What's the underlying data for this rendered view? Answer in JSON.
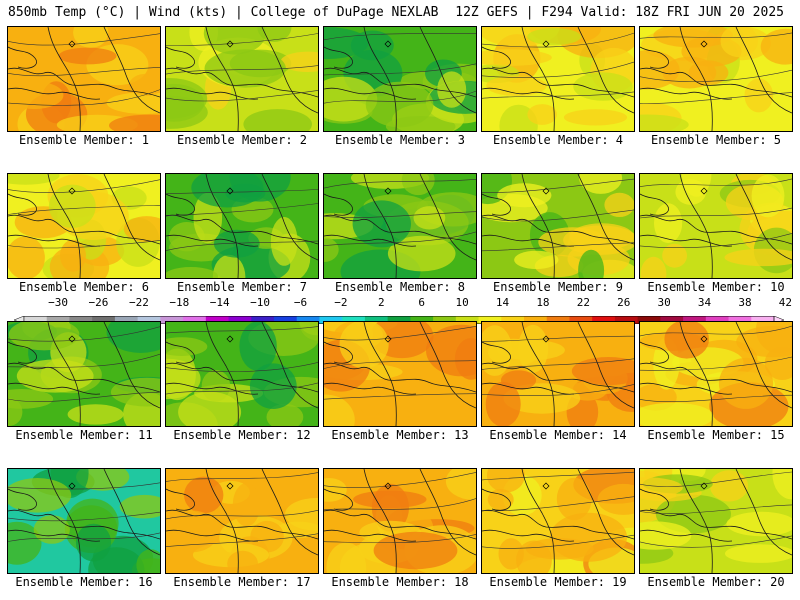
{
  "header": {
    "left": "850mb Temp (°C) | Wind (kts) | College of DuPage NEXLAB",
    "right": "12Z GEFS | F294 Valid: 18Z FRI JUN 20 2025"
  },
  "colorbar": {
    "tick_labels": [
      "-30",
      "-26",
      "-22",
      "-18",
      "-14",
      "-10",
      "-6",
      "-2",
      "2",
      "6",
      "10",
      "14",
      "18",
      "22",
      "26",
      "30",
      "34",
      "38",
      "42"
    ],
    "colors": [
      "#d8d8d8",
      "#a8a8a8",
      "#888888",
      "#707070",
      "#9aa6b6",
      "#b4c6de",
      "#c896d8",
      "#e070e8",
      "#c000c8",
      "#8c00d0",
      "#3c20c8",
      "#1840e0",
      "#1888f0",
      "#20c8f0",
      "#20e0c0",
      "#10c080",
      "#10a040",
      "#44b418",
      "#8cc814",
      "#c8e018",
      "#f0f020",
      "#f8d218",
      "#f8b010",
      "#f07c10",
      "#e84c10",
      "#e01010",
      "#b80c10",
      "#8c0a0a",
      "#a00a40",
      "#c01880",
      "#e040c0",
      "#f070e0",
      "#f8b0f0"
    ]
  },
  "panels": [
    {
      "label": "Ensemble Member: 1",
      "dominant": "orange"
    },
    {
      "label": "Ensemble Member: 2",
      "dominant": "yellow-green"
    },
    {
      "label": "Ensemble Member: 3",
      "dominant": "green"
    },
    {
      "label": "Ensemble Member: 4",
      "dominant": "yellow"
    },
    {
      "label": "Ensemble Member: 5",
      "dominant": "yellow"
    },
    {
      "label": "Ensemble Member: 6",
      "dominant": "yellow"
    },
    {
      "label": "Ensemble Member: 7",
      "dominant": "green"
    },
    {
      "label": "Ensemble Member: 8",
      "dominant": "green"
    },
    {
      "label": "Ensemble Member: 9",
      "dominant": "green-yellow"
    },
    {
      "label": "Ensemble Member: 10",
      "dominant": "yellow-green"
    },
    {
      "label": "Ensemble Member: 11",
      "dominant": "green"
    },
    {
      "label": "Ensemble Member: 12",
      "dominant": "green"
    },
    {
      "label": "Ensemble Member: 13",
      "dominant": "orange"
    },
    {
      "label": "Ensemble Member: 14",
      "dominant": "orange"
    },
    {
      "label": "Ensemble Member: 15",
      "dominant": "yellow-orange"
    },
    {
      "label": "Ensemble Member: 16",
      "dominant": "teal-green"
    },
    {
      "label": "Ensemble Member: 17",
      "dominant": "orange"
    },
    {
      "label": "Ensemble Member: 18",
      "dominant": "orange"
    },
    {
      "label": "Ensemble Member: 19",
      "dominant": "yellow-orange"
    },
    {
      "label": "Ensemble Member: 20",
      "dominant": "yellow-green"
    }
  ]
}
